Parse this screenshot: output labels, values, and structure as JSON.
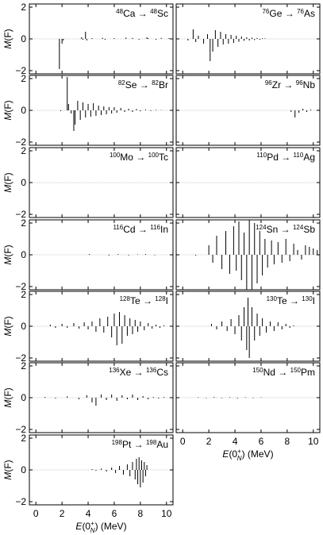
{
  "figure": {
    "y_axis_label": "M(F)",
    "x_axis_label": "E(0N+) (MeV)"
  },
  "chart_data": [
    {
      "type": "bar",
      "panel_label": "48Ca → 48Sc",
      "label_parts": [
        {
          "text": "48",
          "sup": true
        },
        {
          "text": "Ca → ",
          "sup": false
        },
        {
          "text": "48",
          "sup": true
        },
        {
          "text": "Sc",
          "sup": false
        }
      ],
      "xlim": [
        -0.5,
        10.5
      ],
      "ylim": [
        -2.2,
        2.2
      ],
      "yticks": [
        -2,
        0,
        2
      ],
      "xticks": [
        0,
        2,
        4,
        6,
        8,
        10
      ],
      "show_xticklabels": false,
      "series": [
        {
          "x": [
            1.8,
            2.0,
            2.1,
            3.5,
            3.6,
            3.8,
            3.9,
            4.3,
            5.1,
            5.3,
            6.0,
            6.9,
            7.4,
            7.9,
            8.5,
            8.6,
            9.2,
            9.6,
            10.2
          ],
          "values": [
            -1.9,
            -0.3,
            -0.1,
            0.1,
            -0.05,
            0.45,
            -0.1,
            0.05,
            0.07,
            -0.05,
            0.05,
            0.08,
            0.06,
            -0.05,
            0.1,
            0.05,
            -0.05,
            0.06,
            0.05
          ]
        }
      ]
    },
    {
      "type": "bar",
      "panel_label": "76Ge → 76As",
      "label_parts": [
        {
          "text": "76",
          "sup": true
        },
        {
          "text": "Ge → ",
          "sup": false
        },
        {
          "text": "76",
          "sup": true
        },
        {
          "text": "As",
          "sup": false
        }
      ],
      "xlim": [
        -0.5,
        10.5
      ],
      "ylim": [
        -2.2,
        2.2
      ],
      "yticks": [
        -2,
        0,
        2
      ],
      "xticks": [
        0,
        2,
        4,
        6,
        8,
        10
      ],
      "show_xticklabels": false,
      "series": [
        {
          "x": [
            0.4,
            0.8,
            1.0,
            1.2,
            1.6,
            1.9,
            2.1,
            2.3,
            2.5,
            2.7,
            2.9,
            3.1,
            3.3,
            3.5,
            3.7,
            3.9,
            4.1,
            4.3,
            4.5,
            4.7,
            4.9,
            5.1,
            5.3,
            5.5,
            5.7,
            5.9,
            6.1,
            6.3
          ],
          "values": [
            -0.1,
            0.6,
            -0.2,
            0.2,
            -0.3,
            0.3,
            -1.4,
            -0.8,
            0.55,
            -0.5,
            0.45,
            -0.35,
            0.3,
            -0.3,
            0.25,
            -0.25,
            0.2,
            -0.18,
            0.15,
            -0.12,
            0.1,
            -0.1,
            0.08,
            -0.07,
            0.06,
            -0.05,
            0.04,
            0.03
          ]
        }
      ]
    },
    {
      "type": "bar",
      "panel_label": "82Se → 82Br",
      "label_parts": [
        {
          "text": "82",
          "sup": true
        },
        {
          "text": "Se → ",
          "sup": false
        },
        {
          "text": "82",
          "sup": true
        },
        {
          "text": "Br",
          "sup": false
        }
      ],
      "xlim": [
        -0.5,
        10.5
      ],
      "ylim": [
        -2.2,
        2.2
      ],
      "yticks": [
        -2,
        0,
        2
      ],
      "xticks": [
        0,
        2,
        4,
        6,
        8,
        10
      ],
      "show_xticklabels": false,
      "series": [
        {
          "x": [
            1.9,
            2.4,
            2.5,
            2.7,
            2.9,
            3.0,
            3.2,
            3.4,
            3.6,
            3.8,
            4.0,
            4.2,
            4.4,
            4.6,
            4.8,
            5.0,
            5.2,
            5.4,
            5.6,
            5.8,
            6.0,
            6.2,
            6.5,
            6.8,
            7.1,
            7.4,
            7.7,
            8.0,
            8.4,
            8.8,
            9.2,
            9.6
          ],
          "values": [
            -0.05,
            2.1,
            0.4,
            -0.2,
            -1.3,
            -0.9,
            0.6,
            -0.6,
            0.5,
            -0.45,
            0.4,
            -0.4,
            0.45,
            -0.35,
            0.3,
            -0.3,
            0.25,
            -0.25,
            0.2,
            -0.2,
            0.2,
            -0.15,
            0.15,
            -0.1,
            0.1,
            -0.1,
            0.08,
            -0.06,
            0.05,
            -0.04,
            0.03,
            0.02
          ]
        }
      ]
    },
    {
      "type": "bar",
      "panel_label": "96Zr → 96Nb",
      "label_parts": [
        {
          "text": "96",
          "sup": true
        },
        {
          "text": "Zr → ",
          "sup": false
        },
        {
          "text": "96",
          "sup": true
        },
        {
          "text": "Nb",
          "sup": false
        }
      ],
      "xlim": [
        -0.5,
        10.5
      ],
      "ylim": [
        -2.2,
        2.2
      ],
      "yticks": [
        -2,
        0,
        2
      ],
      "xticks": [
        0,
        2,
        4,
        6,
        8,
        10
      ],
      "show_xticklabels": false,
      "series": [
        {
          "x": [
            8.3,
            8.6,
            8.9,
            9.2,
            9.5,
            9.8
          ],
          "values": [
            -0.1,
            -0.45,
            -0.15,
            0.1,
            -0.1,
            0.05
          ]
        }
      ]
    },
    {
      "type": "bar",
      "panel_label": "100Mo → 100Tc",
      "label_parts": [
        {
          "text": "100",
          "sup": true
        },
        {
          "text": "Mo → ",
          "sup": false
        },
        {
          "text": "100",
          "sup": true
        },
        {
          "text": "Tc",
          "sup": false
        }
      ],
      "xlim": [
        -0.5,
        10.5
      ],
      "ylim": [
        -2.2,
        2.2
      ],
      "yticks": [
        -2,
        0,
        2
      ],
      "xticks": [
        0,
        2,
        4,
        6,
        8,
        10
      ],
      "show_xticklabels": false,
      "series": [
        {
          "x": [],
          "values": []
        }
      ]
    },
    {
      "type": "bar",
      "panel_label": "110Pd → 110Ag",
      "label_parts": [
        {
          "text": "110",
          "sup": true
        },
        {
          "text": "Pd → ",
          "sup": false
        },
        {
          "text": "110",
          "sup": true
        },
        {
          "text": "Ag",
          "sup": false
        }
      ],
      "xlim": [
        -0.5,
        10.5
      ],
      "ylim": [
        -2.2,
        2.2
      ],
      "yticks": [
        -2,
        0,
        2
      ],
      "xticks": [
        0,
        2,
        4,
        6,
        8,
        10
      ],
      "show_xticklabels": false,
      "series": [
        {
          "x": [],
          "values": []
        }
      ]
    },
    {
      "type": "bar",
      "panel_label": "116Cd → 116In",
      "label_parts": [
        {
          "text": "116",
          "sup": true
        },
        {
          "text": "Cd → ",
          "sup": false
        },
        {
          "text": "116",
          "sup": true
        },
        {
          "text": "In",
          "sup": false
        }
      ],
      "xlim": [
        -0.5,
        10.5
      ],
      "ylim": [
        -2.2,
        2.2
      ],
      "yticks": [
        -2,
        0,
        2
      ],
      "xticks": [
        0,
        2,
        4,
        6,
        8,
        10
      ],
      "show_xticklabels": false,
      "series": [
        {
          "x": [
            4.1,
            5.6,
            6.3,
            7.1,
            7.8,
            8.4,
            9.1
          ],
          "values": [
            0.05,
            -0.05,
            0.04,
            -0.04,
            0.03,
            0.05,
            -0.03
          ]
        }
      ]
    },
    {
      "type": "bar",
      "panel_label": "124Sn → 124Sb",
      "label_parts": [
        {
          "text": "124",
          "sup": true
        },
        {
          "text": "Sn → ",
          "sup": false
        },
        {
          "text": "124",
          "sup": true
        },
        {
          "text": "Sb",
          "sup": false
        }
      ],
      "xlim": [
        -0.5,
        10.5
      ],
      "ylim": [
        -2.2,
        2.2
      ],
      "yticks": [
        -2,
        0,
        2
      ],
      "xticks": [
        0,
        2,
        4,
        6,
        8,
        10
      ],
      "show_xticklabels": false,
      "series": [
        {
          "x": [
            1.0,
            2.0,
            2.3,
            2.6,
            3.0,
            3.3,
            3.6,
            3.9,
            4.1,
            4.3,
            4.5,
            4.7,
            4.9,
            5.1,
            5.3,
            5.5,
            5.7,
            5.9,
            6.1,
            6.3,
            6.5,
            6.8,
            7.0,
            7.3,
            7.6,
            7.9,
            8.2,
            8.5,
            8.8,
            9.1,
            9.4,
            9.7,
            10.0,
            10.3
          ],
          "values": [
            -0.05,
            0.6,
            -0.5,
            1.2,
            -0.9,
            1.5,
            -1.2,
            1.8,
            -1.0,
            2.1,
            -1.6,
            1.4,
            -2.2,
            2.2,
            -2.2,
            2.0,
            -1.8,
            1.5,
            -1.3,
            1.0,
            -0.8,
            0.9,
            -0.6,
            0.8,
            -0.5,
            1.0,
            -0.4,
            0.7,
            0.3,
            -0.3,
            0.6,
            0.5,
            0.4,
            0.3
          ]
        }
      ]
    },
    {
      "type": "bar",
      "panel_label": "128Te → 128I",
      "label_parts": [
        {
          "text": "128",
          "sup": true
        },
        {
          "text": "Te → ",
          "sup": false
        },
        {
          "text": "128",
          "sup": true
        },
        {
          "text": "I",
          "sup": false
        }
      ],
      "xlim": [
        -0.5,
        10.5
      ],
      "ylim": [
        -2.2,
        2.2
      ],
      "yticks": [
        -2,
        0,
        2
      ],
      "xticks": [
        0,
        2,
        4,
        6,
        8,
        10
      ],
      "show_xticklabels": false,
      "series": [
        {
          "x": [
            1.1,
            1.5,
            2.0,
            2.4,
            2.9,
            3.3,
            3.7,
            4.0,
            4.3,
            4.6,
            4.9,
            5.2,
            5.5,
            5.8,
            6.0,
            6.2,
            6.4,
            6.6,
            6.8,
            7.0,
            7.2,
            7.4,
            7.6,
            7.8,
            8.0,
            8.3,
            8.6,
            8.9,
            9.2,
            9.5,
            9.8
          ],
          "values": [
            0.1,
            -0.1,
            0.15,
            -0.1,
            0.2,
            -0.15,
            0.25,
            -0.2,
            0.3,
            -0.35,
            0.5,
            -0.4,
            0.6,
            -0.7,
            0.8,
            -1.2,
            0.9,
            -1.1,
            0.7,
            -0.6,
            0.5,
            -0.5,
            0.4,
            -0.35,
            0.3,
            -0.25,
            0.2,
            -0.15,
            0.1,
            -0.1,
            0.05
          ]
        }
      ]
    },
    {
      "type": "bar",
      "panel_label": "130Te → 130I",
      "label_parts": [
        {
          "text": "130",
          "sup": true
        },
        {
          "text": "Te → ",
          "sup": false
        },
        {
          "text": "130",
          "sup": true
        },
        {
          "text": "I",
          "sup": false
        }
      ],
      "xlim": [
        -0.5,
        10.5
      ],
      "ylim": [
        -2.2,
        2.2
      ],
      "yticks": [
        -2,
        0,
        2
      ],
      "xticks": [
        0,
        2,
        4,
        6,
        8,
        10
      ],
      "show_xticklabels": false,
      "series": [
        {
          "x": [
            2.2,
            2.6,
            3.0,
            3.4,
            3.7,
            4.0,
            4.3,
            4.5,
            4.7,
            4.9,
            5.0,
            5.1,
            5.3,
            5.5,
            5.7,
            5.9,
            6.1,
            6.4,
            6.7,
            7.0,
            7.3,
            7.6,
            7.9,
            8.2,
            8.5
          ],
          "values": [
            0.15,
            -0.2,
            0.3,
            -0.3,
            0.45,
            -0.5,
            0.7,
            -0.9,
            1.2,
            -1.5,
            1.8,
            -2.0,
            1.2,
            -0.9,
            0.8,
            -0.6,
            0.5,
            -0.4,
            0.3,
            -0.3,
            0.25,
            -0.2,
            0.15,
            -0.1,
            0.05
          ]
        }
      ]
    },
    {
      "type": "bar",
      "panel_label": "136Xe → 136Cs",
      "label_parts": [
        {
          "text": "136",
          "sup": true
        },
        {
          "text": "Xe → ",
          "sup": false
        },
        {
          "text": "136",
          "sup": true
        },
        {
          "text": "Cs",
          "sup": false
        }
      ],
      "xlim": [
        -0.5,
        10.5
      ],
      "ylim": [
        -2.2,
        2.2
      ],
      "yticks": [
        -2,
        0,
        2
      ],
      "xticks": [
        0,
        2,
        4,
        6,
        8,
        10
      ],
      "show_xticklabels": false,
      "series": [
        {
          "x": [
            0.7,
            1.5,
            2.4,
            3.3,
            3.9,
            4.3,
            4.6,
            5.0,
            5.4,
            5.8,
            6.2,
            6.6,
            7.0,
            7.4,
            7.8,
            8.2,
            8.6,
            9.0,
            9.4,
            9.8
          ],
          "values": [
            0.05,
            -0.05,
            0.08,
            -0.1,
            0.15,
            -0.3,
            -0.5,
            0.2,
            -0.15,
            0.2,
            -0.2,
            0.15,
            -0.1,
            0.2,
            -0.15,
            0.1,
            -0.1,
            0.05,
            -0.05,
            0.04
          ]
        }
      ]
    },
    {
      "type": "bar",
      "panel_label": "150Nd → 150Pm",
      "label_parts": [
        {
          "text": "150",
          "sup": true
        },
        {
          "text": "Nd → ",
          "sup": false
        },
        {
          "text": "150",
          "sup": true
        },
        {
          "text": "Pm",
          "sup": false
        }
      ],
      "xlim": [
        -0.5,
        10.5
      ],
      "ylim": [
        -2.2,
        2.2
      ],
      "yticks": [
        -2,
        0,
        2
      ],
      "xticks": [
        0,
        2,
        4,
        6,
        8,
        10
      ],
      "show_xticklabels": true,
      "series": [
        {
          "x": [
            1.2,
            1.8,
            2.4,
            3.0,
            3.6,
            4.2,
            4.8,
            5.4,
            6.0
          ],
          "values": [
            0.03,
            -0.03,
            0.04,
            -0.03,
            0.03,
            -0.04,
            0.03,
            -0.03,
            0.02
          ]
        }
      ]
    },
    {
      "type": "bar",
      "panel_label": "198Pt → 198Au",
      "label_parts": [
        {
          "text": "198",
          "sup": true
        },
        {
          "text": "Pt → ",
          "sup": false
        },
        {
          "text": "198",
          "sup": true
        },
        {
          "text": "Au",
          "sup": false
        }
      ],
      "xlim": [
        -0.5,
        10.5
      ],
      "ylim": [
        -2.2,
        2.2
      ],
      "yticks": [
        -2,
        0,
        2
      ],
      "xticks": [
        0,
        2,
        4,
        6,
        8,
        10
      ],
      "show_xticklabels": true,
      "series": [
        {
          "x": [
            4.3,
            4.6,
            5.0,
            5.4,
            5.8,
            6.1,
            6.4,
            6.7,
            7.0,
            7.2,
            7.4,
            7.6,
            7.7,
            7.8,
            7.9,
            8.0,
            8.1,
            8.2,
            8.3,
            8.4,
            8.5
          ],
          "values": [
            0.05,
            -0.05,
            0.08,
            -0.1,
            0.15,
            -0.2,
            0.25,
            -0.3,
            0.35,
            -0.4,
            0.5,
            -0.6,
            0.7,
            -0.9,
            0.8,
            -1.1,
            0.6,
            -0.8,
            0.5,
            -0.4,
            0.3
          ]
        }
      ]
    }
  ]
}
